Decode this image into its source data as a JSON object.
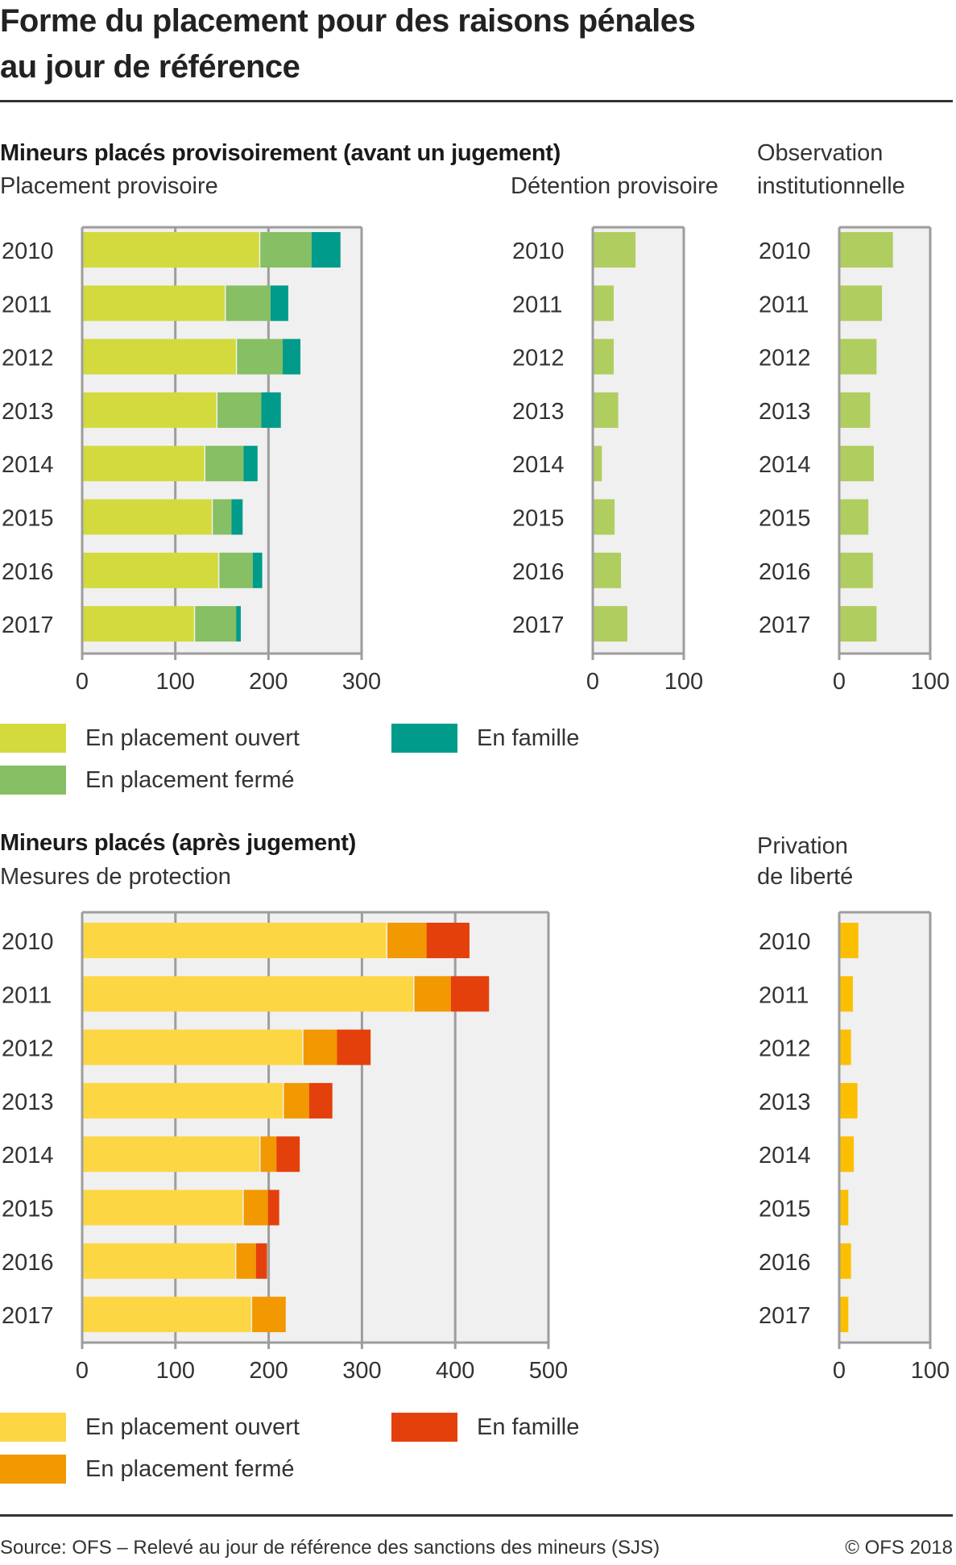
{
  "title_line1": "Forme du placement pour des raisons pénales",
  "title_line2": "au jour de référence",
  "section1": {
    "heading": "Mineurs placés provisoirement (avant un jugement)",
    "obs_heading_line1": "Observation",
    "sub_placement": "Placement provisoire",
    "sub_detention": "Détention provisoire",
    "obs_heading_line2": "institutionnelle"
  },
  "legend1": [
    {
      "label": "En placement ouvert",
      "color": "#d3da3e"
    },
    {
      "label": "En placement fermé",
      "color": "#86bf64"
    },
    {
      "label": "En famille",
      "color": "#009b8a"
    }
  ],
  "section2": {
    "heading": "Mineurs placés (après jugement)",
    "sub_protection": "Mesures de protection",
    "priv_line1": "Privation",
    "priv_line2": "de liberté"
  },
  "legend2": [
    {
      "label": "En placement ouvert",
      "color": "#fdd643"
    },
    {
      "label": "En placement fermé",
      "color": "#f29800"
    },
    {
      "label": "En famille",
      "color": "#e4400b"
    }
  ],
  "footer": {
    "source": "Source: OFS – Relevé au jour de référence des sanctions des mineurs (SJS)",
    "copyright": "© OFS 2018"
  },
  "chart_data": [
    {
      "type": "bar",
      "orientation": "horizontal",
      "stacked": true,
      "title": "Placement provisoire",
      "categories": [
        "2010",
        "2011",
        "2012",
        "2013",
        "2014",
        "2015",
        "2016",
        "2017"
      ],
      "series": [
        {
          "name": "En placement ouvert",
          "color": "#d3da3e",
          "values": [
            190,
            153,
            165,
            144,
            131,
            139,
            146,
            120
          ]
        },
        {
          "name": "En placement fermé",
          "color": "#86bf64",
          "values": [
            55,
            48,
            49,
            47,
            41,
            20,
            36,
            44
          ]
        },
        {
          "name": "En famille",
          "color": "#009b8a",
          "values": [
            31,
            19,
            19,
            21,
            15,
            12,
            10,
            5
          ]
        }
      ],
      "xlim": [
        0,
        300
      ],
      "xticks": [
        "0",
        "100",
        "200",
        "300"
      ],
      "grid": true
    },
    {
      "type": "bar",
      "orientation": "horizontal",
      "title": "Détention provisoire",
      "categories": [
        "2010",
        "2011",
        "2012",
        "2013",
        "2014",
        "2015",
        "2016",
        "2017"
      ],
      "series": [
        {
          "name": "Détention provisoire",
          "color": "#b0cd5f",
          "values": [
            47,
            23,
            23,
            28,
            10,
            24,
            31,
            38
          ]
        }
      ],
      "xlim": [
        0,
        100
      ],
      "xticks": [
        "0",
        "100"
      ]
    },
    {
      "type": "bar",
      "orientation": "horizontal",
      "title": "Observation institutionnelle",
      "categories": [
        "2010",
        "2011",
        "2012",
        "2013",
        "2014",
        "2015",
        "2016",
        "2017"
      ],
      "series": [
        {
          "name": "Observation institutionnelle",
          "color": "#b0cd5f",
          "values": [
            59,
            47,
            41,
            34,
            38,
            32,
            37,
            41
          ]
        }
      ],
      "xlim": [
        0,
        100
      ],
      "xticks": [
        "0",
        "100"
      ]
    },
    {
      "type": "bar",
      "orientation": "horizontal",
      "stacked": true,
      "title": "Mesures de protection",
      "categories": [
        "2010",
        "2011",
        "2012",
        "2013",
        "2014",
        "2015",
        "2016",
        "2017"
      ],
      "series": [
        {
          "name": "En placement ouvert",
          "color": "#fdd643",
          "values": [
            326,
            355,
            236,
            215,
            190,
            172,
            164,
            181
          ]
        },
        {
          "name": "En placement fermé",
          "color": "#f29800",
          "values": [
            42,
            39,
            36,
            27,
            17,
            26,
            21,
            36
          ]
        },
        {
          "name": "En famille",
          "color": "#e4400b",
          "values": [
            46,
            41,
            36,
            25,
            25,
            12,
            12,
            0
          ]
        }
      ],
      "xlim": [
        0,
        500
      ],
      "xticks": [
        "0",
        "100",
        "200",
        "300",
        "400",
        "500"
      ],
      "grid": true
    },
    {
      "type": "bar",
      "orientation": "horizontal",
      "title": "Privation de liberté",
      "categories": [
        "2010",
        "2011",
        "2012",
        "2013",
        "2014",
        "2015",
        "2016",
        "2017"
      ],
      "series": [
        {
          "name": "Privation de liberté",
          "color": "#fbbf00",
          "values": [
            21,
            15,
            13,
            20,
            16,
            10,
            13,
            10
          ]
        }
      ],
      "xlim": [
        0,
        100
      ],
      "xticks": [
        "0",
        "100"
      ]
    }
  ]
}
